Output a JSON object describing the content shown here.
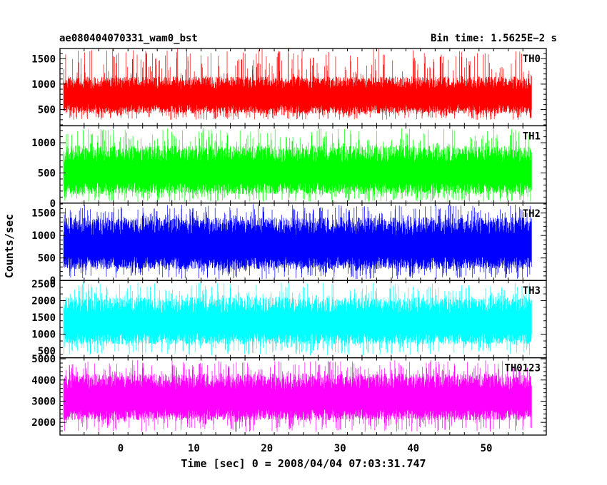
{
  "header": {
    "left": "ae080404070331_wam0_bst",
    "right": "Bin time: 1.5625E−2 s"
  },
  "xlabel": "Time [sec] 0 = 2008/04/04 07:03:31.747",
  "ylabel": "Counts/sec",
  "colors": {
    "TH0": "#ff0000",
    "TH1": "#00ff00",
    "TH2": "#0000ff",
    "TH3": "#00ffff",
    "TH0123": "#ff00ff"
  },
  "chart_data": {
    "type": "line",
    "x_axis": {
      "xlim": [
        -8.3,
        58.2
      ],
      "data_range": [
        -7.8,
        56.2
      ],
      "ticks": [
        0,
        10,
        20,
        30,
        40,
        50
      ],
      "tick_labels": [
        "0",
        "10",
        "20",
        "30",
        "40",
        "50"
      ]
    },
    "panels": [
      {
        "name": "TH0",
        "color": "#ff0000",
        "ylim": [
          180,
          1700
        ],
        "ticks": [
          500,
          1000,
          1500
        ],
        "tick_labels": [
          "500",
          "1000",
          "1500"
        ],
        "envelope": {
          "min": 300,
          "max": 1700,
          "typical_low": 420,
          "typical_high": 1150
        }
      },
      {
        "name": "TH1",
        "color": "#00ff00",
        "ylim": [
          0,
          1280
        ],
        "ticks": [
          0,
          500,
          1000
        ],
        "tick_labels": [
          "0",
          "500",
          "1000"
        ],
        "envelope": {
          "min": 20,
          "max": 1250,
          "typical_low": 150,
          "typical_high": 950
        }
      },
      {
        "name": "TH2",
        "color": "#0000ff",
        "ylim": [
          0,
          1720
        ],
        "ticks": [
          0,
          500,
          1000,
          1500
        ],
        "tick_labels": [
          "0",
          "500",
          "1000",
          "1500"
        ],
        "envelope": {
          "min": 30,
          "max": 1700,
          "typical_low": 250,
          "typical_high": 1400
        }
      },
      {
        "name": "TH3",
        "color": "#00ffff",
        "ylim": [
          300,
          2600
        ],
        "ticks": [
          500,
          1000,
          1500,
          2000,
          2500
        ],
        "tick_labels": [
          "500",
          "1000",
          "1500",
          "2000",
          "2500"
        ],
        "envelope": {
          "min": 380,
          "max": 2550,
          "typical_low": 700,
          "typical_high": 2100
        }
      },
      {
        "name": "TH0123",
        "color": "#ff00ff",
        "ylim": [
          1400,
          5050
        ],
        "ticks": [
          2000,
          3000,
          4000,
          5000
        ],
        "tick_labels": [
          "2000",
          "3000",
          "4000",
          "5000"
        ],
        "envelope": {
          "min": 1550,
          "max": 4950,
          "typical_low": 2100,
          "typical_high": 4300
        }
      }
    ]
  }
}
